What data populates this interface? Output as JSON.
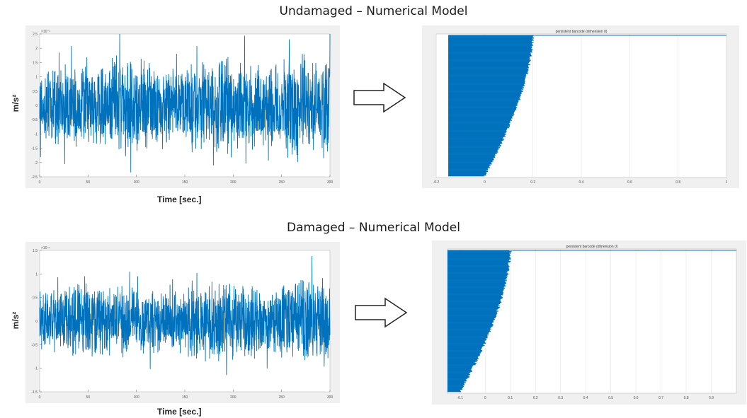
{
  "titles": {
    "top": "Undamaged – Numerical Model",
    "bottom": "Damaged – Numerical Model"
  },
  "colors": {
    "series": "#0072bd",
    "frame": "#f0f0f0",
    "grid": "#e3e3e3"
  },
  "labels": {
    "ylabel_top": "m/s²",
    "ylabel_bottom": "m/s²",
    "xlabel_top": "Time [sec.]",
    "xlabel_bottom": "Time [sec.]"
  },
  "arrows": [
    "arrow-right",
    "arrow-right"
  ],
  "chart_data": [
    {
      "type": "line",
      "ylabel": "m/s²",
      "xlabel": "Time [sec.]",
      "exponent_label": "×10⁻⁴",
      "xlim": [
        0,
        300
      ],
      "ylim": [
        -2.5,
        2.5
      ],
      "xticks": [
        0,
        50,
        100,
        150,
        200,
        250,
        300
      ],
      "yticks": [
        -2.5,
        -2,
        -1.5,
        -1,
        -0.5,
        0,
        0.5,
        1,
        1.5,
        2,
        2.5
      ],
      "series": [
        {
          "amplitude_envelope": [
            0.9,
            1.0,
            0.95,
            1.1,
            1.0,
            0.9,
            1.05,
            1.15,
            1.0,
            0.95,
            1.2,
            1.0
          ]
        }
      ]
    },
    {
      "type": "bar",
      "title": "persistent barcode (dimension 0)",
      "xlim": [
        -0.2,
        1
      ],
      "xticks": [
        -0.2,
        0,
        0.2,
        0.4,
        0.6,
        0.8,
        1
      ],
      "bars": {
        "count": 190,
        "start": -0.15,
        "death_min": 0.0,
        "death_max": 0.2
      }
    },
    {
      "type": "line",
      "ylabel": "m/s²",
      "xlabel": "Time [sec.]",
      "exponent_label": "×10⁻⁴",
      "xlim": [
        0,
        300
      ],
      "ylim": [
        -1.5,
        1.5
      ],
      "xticks": [
        0,
        50,
        100,
        150,
        200,
        250,
        300
      ],
      "yticks": [
        -1.5,
        -1,
        -0.5,
        0,
        0.5,
        1,
        1.5
      ],
      "series": [
        {
          "amplitude_envelope": [
            0.75,
            0.9,
            0.85,
            0.8,
            0.7,
            0.65,
            0.8,
            0.9,
            0.85,
            0.75,
            0.95,
            1.0
          ]
        }
      ]
    },
    {
      "type": "bar",
      "title": "persistent barcode (dimension 0)",
      "xlim": [
        -0.15,
        1
      ],
      "xticks": [
        -0.1,
        0,
        0.1,
        0.2,
        0.3,
        0.4,
        0.5,
        0.6,
        0.7,
        0.8,
        0.9
      ],
      "bars": {
        "count": 190,
        "start": -0.15,
        "death_min": -0.1,
        "death_max": 0.1
      }
    }
  ]
}
